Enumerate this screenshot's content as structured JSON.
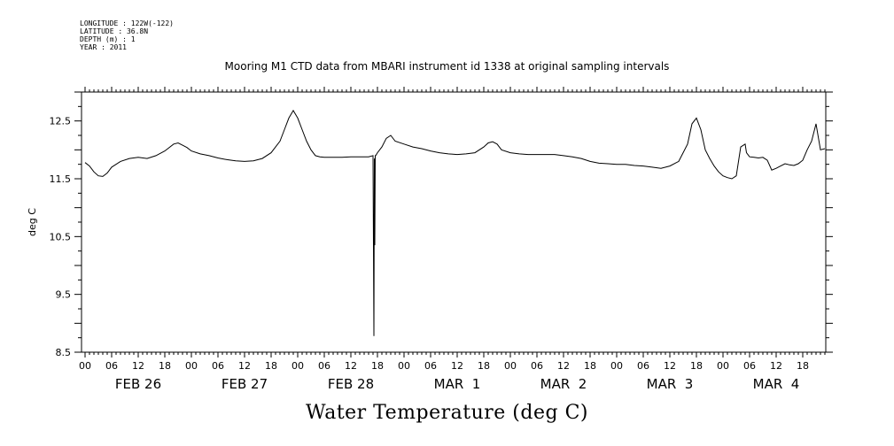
{
  "header": {
    "longitude": "LONGITUDE : 122W(-122)",
    "latitude": "LATITUDE : 36.8N",
    "depth": "DEPTH (m) : 1",
    "year": "YEAR : 2011"
  },
  "chart_data": {
    "type": "line",
    "title": "Mooring M1 CTD data from MBARI instrument id 1338 at original sampling intervals",
    "xlabel": "Water Temperature (deg C)",
    "ylabel": "deg C",
    "ylim": [
      8.5,
      13.0
    ],
    "yticks": [
      "8.5",
      "9.5",
      "10.5",
      "11.5",
      "12.5"
    ],
    "x_unit": "hours since FEB 26 00:00",
    "xlim": [
      0,
      167
    ],
    "hour_tick_labels": [
      "00",
      "06",
      "12",
      "18",
      "00",
      "06",
      "12",
      "18",
      "00",
      "06",
      "12",
      "18",
      "00",
      "06",
      "12",
      "18",
      "00",
      "06",
      "12",
      "18",
      "00",
      "06",
      "12",
      "18",
      "00",
      "06",
      "12",
      "18"
    ],
    "day_labels": [
      "FEB 26",
      "FEB 27",
      "FEB 28",
      "MAR  1",
      "MAR  2",
      "MAR  3",
      "MAR  4"
    ],
    "grid": false,
    "series": [
      {
        "name": "",
        "x": [
          0,
          1,
          2,
          3,
          4,
          5,
          6,
          8,
          10,
          12,
          14,
          16,
          18,
          20,
          21,
          22,
          23,
          24,
          26,
          28,
          30,
          32,
          34,
          36,
          38,
          40,
          42,
          44,
          45,
          46,
          47,
          48,
          49,
          50,
          51,
          52,
          53,
          54,
          56,
          58,
          60,
          62,
          64,
          65,
          65.2,
          65.3,
          65.4,
          65.5,
          65.6,
          66,
          67,
          68,
          69,
          70,
          72,
          74,
          76,
          78,
          80,
          82,
          84,
          86,
          88,
          90,
          91,
          92,
          93,
          94,
          96,
          98,
          100,
          102,
          104,
          106,
          108,
          110,
          112,
          114,
          116,
          118,
          120,
          122,
          124,
          126,
          128,
          130,
          132,
          134,
          135,
          136,
          137,
          138,
          139,
          140,
          141,
          142,
          143,
          144,
          145,
          146,
          147,
          148,
          149,
          149.3,
          150,
          151,
          152,
          153,
          154,
          155,
          156,
          157,
          158,
          159,
          160,
          161,
          162,
          163,
          164,
          165,
          166,
          167
        ],
        "y": [
          11.78,
          11.72,
          11.62,
          11.55,
          11.54,
          11.6,
          11.7,
          11.8,
          11.85,
          11.87,
          11.85,
          11.9,
          11.98,
          12.1,
          12.12,
          12.08,
          12.04,
          11.98,
          11.93,
          11.9,
          11.86,
          11.83,
          11.81,
          11.8,
          11.81,
          11.85,
          11.95,
          12.15,
          12.35,
          12.55,
          12.68,
          12.55,
          12.35,
          12.15,
          12.0,
          11.9,
          11.88,
          11.87,
          11.87,
          11.87,
          11.88,
          11.88,
          11.88,
          11.9,
          8.78,
          11.85,
          10.35,
          11.9,
          11.9,
          11.95,
          12.05,
          12.2,
          12.25,
          12.15,
          12.1,
          12.05,
          12.02,
          11.98,
          11.95,
          11.93,
          11.92,
          11.93,
          11.95,
          12.05,
          12.12,
          12.14,
          12.1,
          12.0,
          11.95,
          11.93,
          11.92,
          11.92,
          11.92,
          11.92,
          11.9,
          11.88,
          11.85,
          11.8,
          11.77,
          11.76,
          11.75,
          11.75,
          11.73,
          11.72,
          11.7,
          11.68,
          11.72,
          11.8,
          11.95,
          12.1,
          12.45,
          12.55,
          12.35,
          12.0,
          11.85,
          11.72,
          11.62,
          11.55,
          11.52,
          11.5,
          11.55,
          12.05,
          12.1,
          11.95,
          11.88,
          11.87,
          11.86,
          11.87,
          11.82,
          11.65,
          11.68,
          11.72,
          11.76,
          11.74,
          11.73,
          11.76,
          11.82,
          12.0,
          12.15,
          12.45,
          12.0,
          12.02
        ]
      }
    ]
  }
}
